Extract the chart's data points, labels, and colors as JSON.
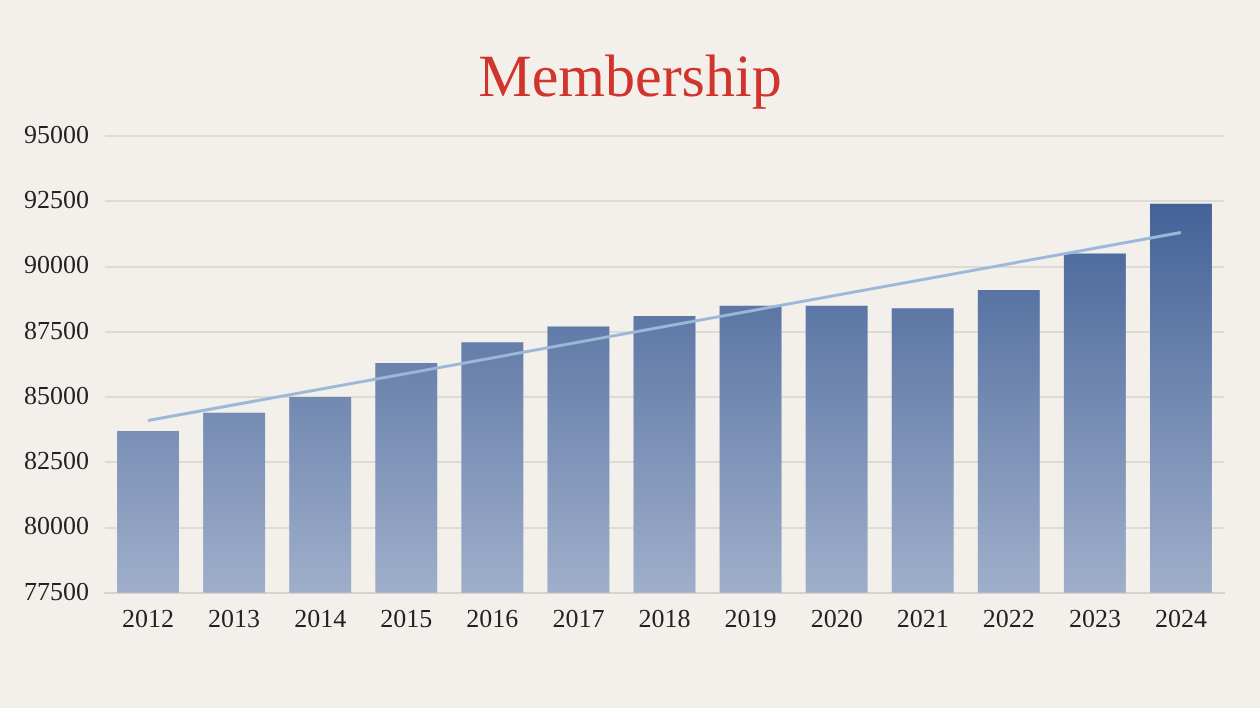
{
  "chart_data": {
    "type": "bar",
    "title": "Membership",
    "categories": [
      "2012",
      "2013",
      "2014",
      "2015",
      "2016",
      "2017",
      "2018",
      "2019",
      "2020",
      "2021",
      "2022",
      "2023",
      "2024"
    ],
    "series": [
      {
        "color": "#3f5e95",
        "values": [
          83700,
          84400,
          85000,
          86300,
          87100,
          87700,
          88100,
          88500,
          88500,
          88400,
          89100,
          90500,
          92400
        ]
      },
      {
        "type": "line",
        "color": "#9bb8d9",
        "values": [
          84100,
          null,
          null,
          null,
          null,
          null,
          null,
          null,
          null,
          null,
          null,
          null,
          91300
        ],
        "marker": "none"
      }
    ],
    "ylim": [
      77500,
      95000
    ],
    "yticks": [
      77500,
      80000,
      82500,
      85000,
      87500,
      90000,
      92500,
      95000
    ],
    "grid": "y",
    "legend": false
  }
}
